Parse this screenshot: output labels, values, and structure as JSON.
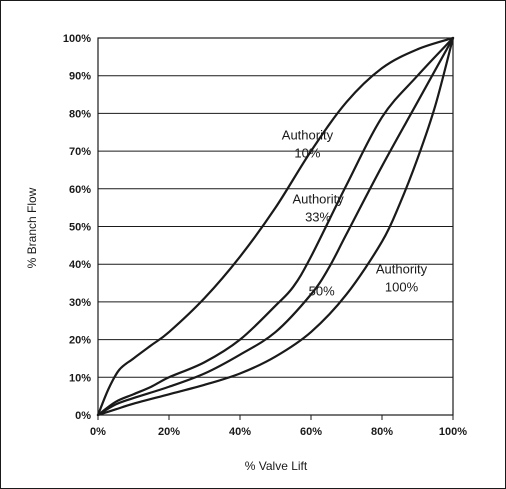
{
  "chart_data": {
    "type": "line",
    "xlabel": "% Valve Lift",
    "ylabel": "% Branch Flow",
    "xlim": [
      0,
      100
    ],
    "ylim": [
      0,
      100
    ],
    "grid": "horizontal",
    "x_ticks": [
      "0%",
      "20%",
      "40%",
      "60%",
      "80%",
      "100%"
    ],
    "y_ticks": [
      "0%",
      "10%",
      "20%",
      "30%",
      "40%",
      "50%",
      "60%",
      "70%",
      "80%",
      "90%",
      "100%"
    ],
    "series": [
      {
        "name": "Authority 10%",
        "x": [
          0,
          3,
          6,
          10,
          15,
          20,
          30,
          40,
          50,
          60,
          70,
          80,
          90,
          100
        ],
        "y": [
          0,
          7,
          12,
          15,
          18.5,
          22,
          31,
          42,
          55,
          70,
          83,
          92,
          97,
          100
        ]
      },
      {
        "name": "Authority 33%",
        "x": [
          0,
          5,
          10,
          15,
          20,
          30,
          40,
          50,
          55,
          60,
          70,
          80,
          90,
          100
        ],
        "y": [
          0,
          3.5,
          5.5,
          7.5,
          10,
          14,
          20,
          29,
          34,
          42,
          61,
          79,
          90,
          100
        ]
      },
      {
        "name": "50%",
        "x": [
          0,
          5,
          10,
          20,
          30,
          40,
          50,
          60,
          65,
          70,
          80,
          90,
          100
        ],
        "y": [
          0,
          2.8,
          4.5,
          7.5,
          11,
          16,
          22,
          32,
          39,
          48,
          66,
          83,
          100
        ]
      },
      {
        "name": "Authority 100%",
        "x": [
          0,
          5,
          10,
          20,
          30,
          40,
          50,
          60,
          70,
          80,
          85,
          90,
          95,
          100
        ],
        "y": [
          0,
          1.5,
          3,
          5.5,
          8,
          11,
          15.5,
          22,
          32,
          46,
          56,
          68,
          82,
          100
        ]
      }
    ],
    "annotations": [
      {
        "lines": [
          "Authority",
          "10%"
        ],
        "x": 59,
        "y": 72
      },
      {
        "lines": [
          "Authority",
          "33%"
        ],
        "x": 62,
        "y": 55
      },
      {
        "lines": [
          "50%"
        ],
        "x": 63,
        "y": 33
      },
      {
        "lines": [
          "Authority",
          "100%"
        ],
        "x": 85.5,
        "y": 36.5
      }
    ]
  }
}
